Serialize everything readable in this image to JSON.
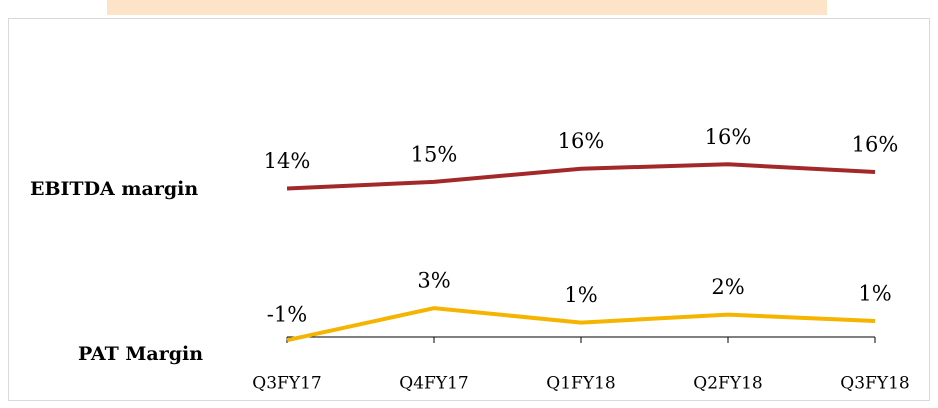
{
  "chart_data": {
    "type": "line",
    "categories": [
      "Q3FY17",
      "Q4FY17",
      "Q1FY18",
      "Q2FY18",
      "Q3FY18"
    ],
    "series": [
      {
        "name": "EBITDA margin",
        "color": "#a3282a",
        "values": [
          14.0,
          14.6,
          15.8,
          16.2,
          15.5
        ],
        "value_labels": [
          "14%",
          "15%",
          "16%",
          "16%",
          "16%"
        ]
      },
      {
        "name": "PAT Margin",
        "color": "#f5b400",
        "axis": "y2",
        "values": [
          -1.0,
          3.0,
          1.2,
          2.2,
          1.4
        ],
        "value_labels": [
          "-1%",
          "3%",
          "1%",
          "2%",
          "1%"
        ]
      }
    ],
    "ylim": [
      0.5,
      27.5
    ],
    "y2lim": [
      -0.6,
      36.5
    ]
  }
}
